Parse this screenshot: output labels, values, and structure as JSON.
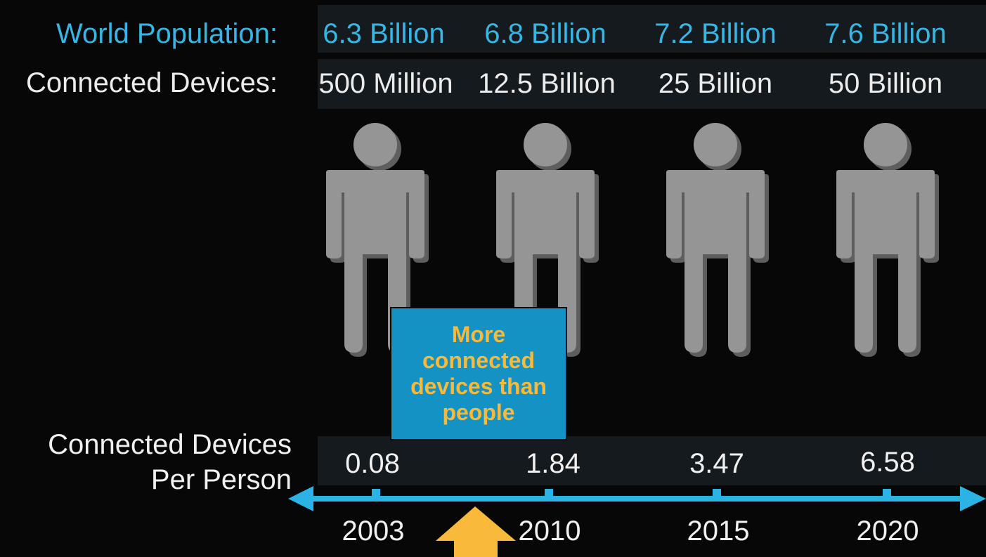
{
  "labels": {
    "world_population": "World Population:",
    "connected_devices": "Connected Devices:",
    "per_person_line1": "Connected Devices",
    "per_person_line2": "Per Person"
  },
  "callout": {
    "text": "More connected devices than people"
  },
  "colors": {
    "background": "#070708",
    "band": "#151a1e",
    "population_text": "#38b6e3",
    "timeline": "#2bb3e6",
    "figure": "#959595",
    "callout_bg": "#1592c4",
    "callout_text": "#f9b93a",
    "arrow": "#f9b93a"
  },
  "icons": [
    "person-icon",
    "timeline-arrow-icon",
    "up-arrow-icon"
  ],
  "chart_data": {
    "type": "table",
    "categories": [
      "2003",
      "2010",
      "2015",
      "2020"
    ],
    "rows": {
      "world_population": [
        "6.3 Billion",
        "6.8 Billion",
        "7.2 Billion",
        "7.6 Billion"
      ],
      "connected_devices": [
        "500 Million",
        "12.5 Billion",
        "25 Billion",
        "50 Billion"
      ],
      "devices_per_person": [
        "0.08",
        "1.84",
        "3.47",
        "6.58"
      ]
    },
    "series": [
      {
        "name": "World Population:",
        "values": [
          6.3,
          6.8,
          7.2,
          7.6
        ]
      },
      {
        "name": "Connected Devices:",
        "values": [
          0.5,
          12.5,
          25,
          50
        ]
      },
      {
        "name": "Connected Devices Per Person",
        "values": [
          0.08,
          1.84,
          3.47,
          6.58
        ]
      }
    ],
    "xlabel": "",
    "ylabel": ""
  }
}
